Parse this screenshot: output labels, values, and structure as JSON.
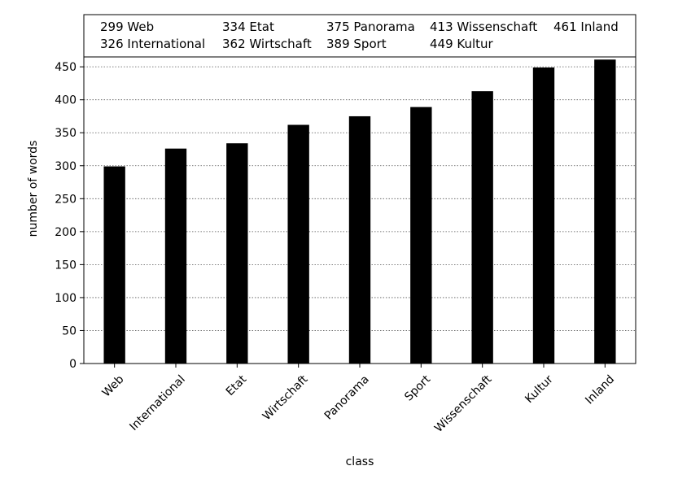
{
  "chart_data": {
    "type": "bar",
    "categories": [
      "Web",
      "International",
      "Etat",
      "Wirtschaft",
      "Panorama",
      "Sport",
      "Wissenschaft",
      "Kultur",
      "Inland"
    ],
    "values": [
      299,
      326,
      334,
      362,
      375,
      389,
      413,
      449,
      461
    ],
    "xlabel": "class",
    "ylabel": "number of words",
    "ylim": [
      0,
      465
    ],
    "yticks": [
      0,
      50,
      100,
      150,
      200,
      250,
      300,
      350,
      400,
      450
    ],
    "grid": "horizontal dotted",
    "bar_color": "#000000",
    "legend_placement": "top",
    "legend": [
      [
        "299 Web",
        "334 Etat",
        "375 Panorama",
        "413 Wissenschaft",
        "461 Inland"
      ],
      [
        "326 International",
        "362 Wirtschaft",
        "389 Sport",
        "449 Kultur"
      ]
    ]
  }
}
